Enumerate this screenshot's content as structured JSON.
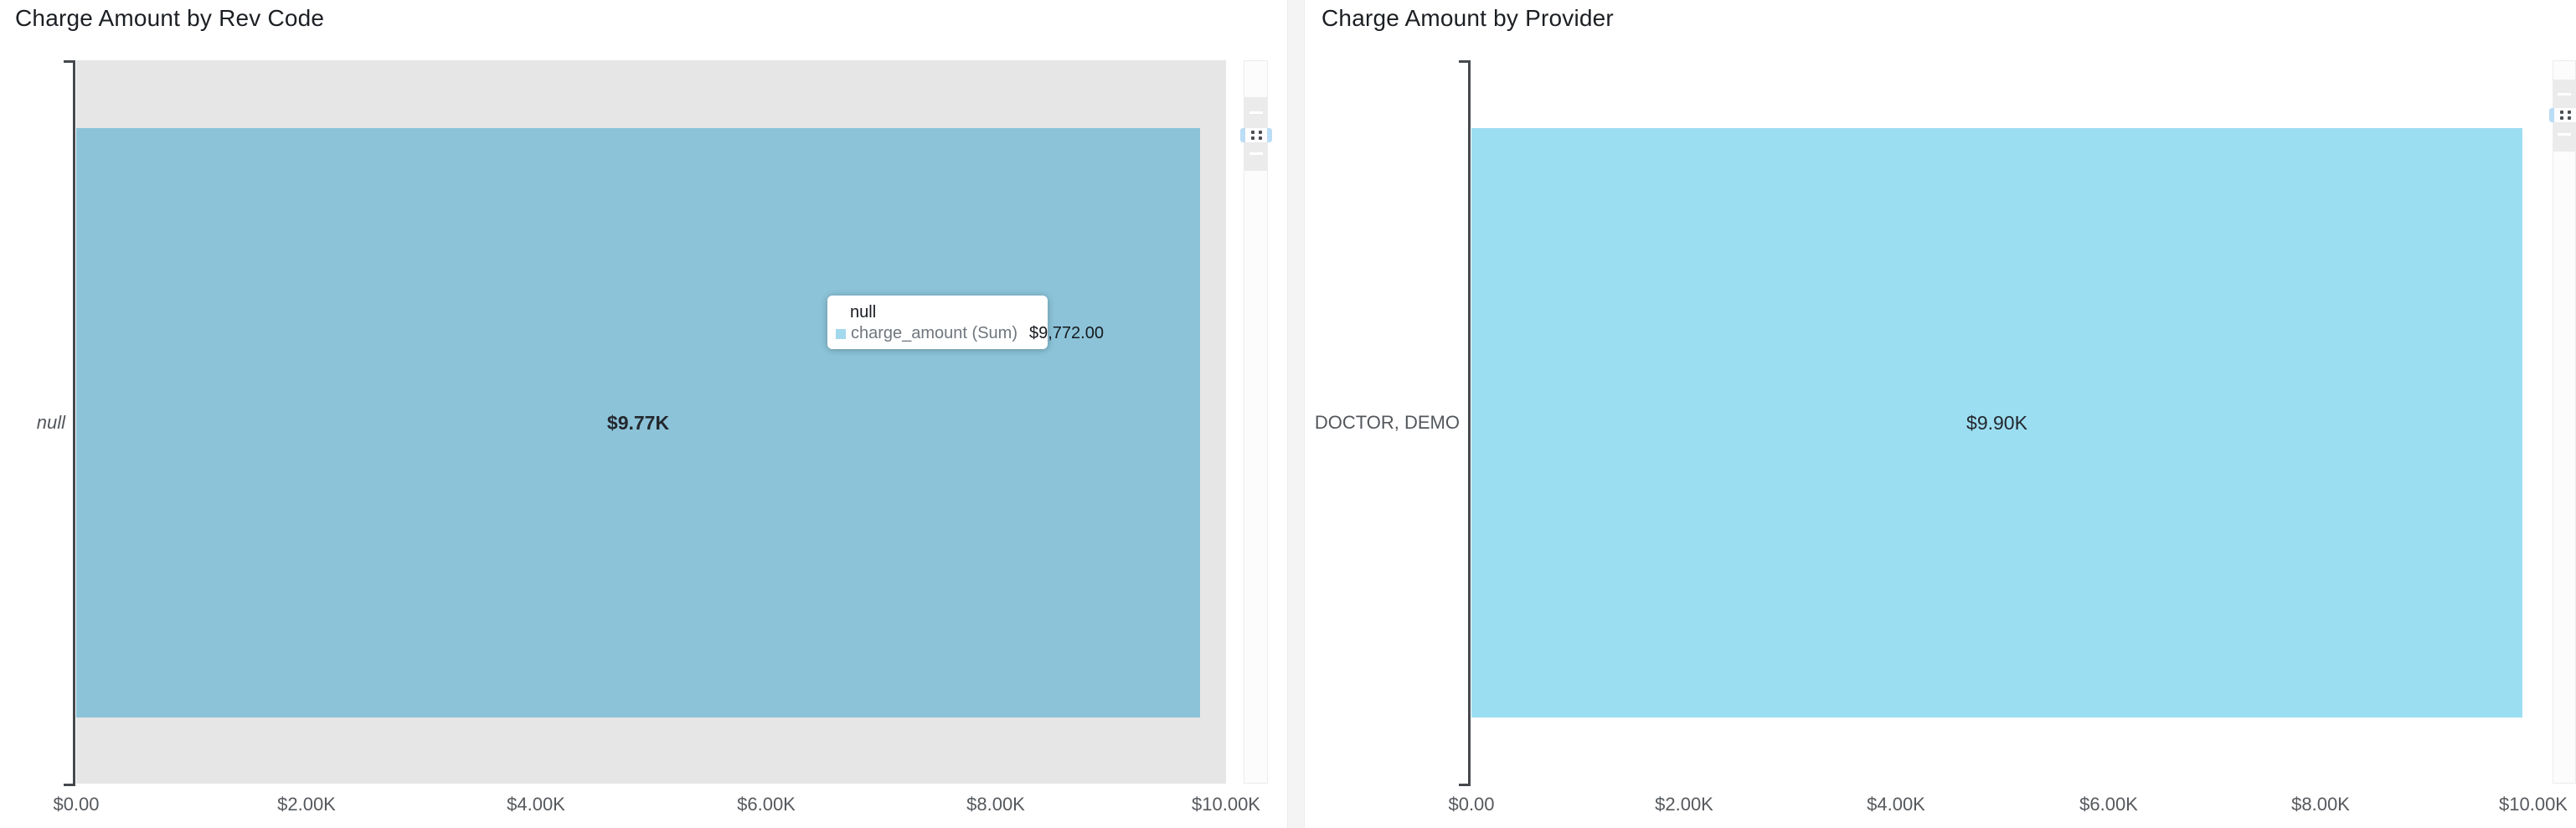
{
  "chart_data": [
    {
      "type": "bar",
      "orientation": "horizontal",
      "title": "Charge Amount by Rev Code",
      "categories": [
        "null"
      ],
      "series": [
        {
          "name": "charge_amount (Sum)",
          "values": [
            9772.0
          ]
        }
      ],
      "value_labels": [
        "$9.77K"
      ],
      "x_tick_labels": [
        "$0.00",
        "$2.00K",
        "$4.00K",
        "$6.00K",
        "$8.00K",
        "$10.00K"
      ],
      "xlim": [
        0,
        10000
      ],
      "grid": false,
      "legend": "none",
      "bar_color": "#8CC3D8",
      "row_highlight_color": "#E6E6E6",
      "hovered": true
    },
    {
      "type": "bar",
      "orientation": "horizontal",
      "title": "Charge Amount by Provider",
      "categories": [
        "DOCTOR, DEMO"
      ],
      "series": [
        {
          "name": "charge_amount (Sum)",
          "values": [
            9900
          ]
        }
      ],
      "value_labels": [
        "$9.90K"
      ],
      "x_tick_labels": [
        "$0.00",
        "$2.00K",
        "$4.00K",
        "$6.00K",
        "$8.00K",
        "$10.00K"
      ],
      "xlim": [
        0,
        10000
      ],
      "grid": false,
      "legend": "none",
      "bar_color": "#9CDEF1",
      "hovered": false
    }
  ],
  "tooltip": {
    "category": "null",
    "series_label": "charge_amount (Sum)",
    "value": "$9,772.00",
    "swatch_color": "#A3D9ED"
  },
  "colors": {
    "axis": "#45494d",
    "row_highlight": "#E6E6E6",
    "tick_text": "#56595d",
    "title_text": "#1c1f23"
  }
}
